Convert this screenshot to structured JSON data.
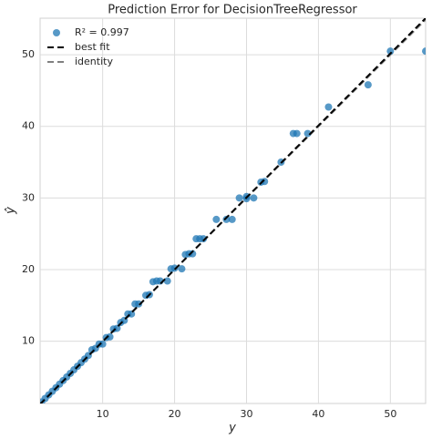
{
  "chart_data": {
    "type": "scatter",
    "title": "Prediction Error for DecisionTreeRegressor",
    "x_label": "y",
    "y_label": "ŷ",
    "xlim": [
      1.3,
      54.9
    ],
    "ylim": [
      1.3,
      55.1
    ],
    "xticks": [
      10,
      20,
      30,
      40,
      50
    ],
    "yticks": [
      10,
      20,
      30,
      40,
      50
    ],
    "grid": true,
    "legend": "upper left",
    "series": [
      {
        "name": "R² = 0.997",
        "mark": "point",
        "color": "#1f77b4",
        "x": [
          1.5,
          2,
          2.5,
          3,
          3.5,
          4,
          4.5,
          5,
          5.5,
          6,
          6.5,
          7,
          7.5,
          8,
          8.5,
          9,
          9.5,
          10,
          10.5,
          11,
          11.5,
          12,
          12.5,
          13,
          13.5,
          14,
          14.5,
          15,
          16,
          16.5,
          17,
          17.5,
          18,
          19,
          19.5,
          20,
          21,
          21.5,
          22,
          22.5,
          23,
          23.5,
          24,
          25.8,
          27.2,
          28,
          29,
          30,
          30,
          31,
          32,
          32.5,
          34.8,
          36.5,
          37,
          38.5,
          41.4,
          46.9,
          50,
          54.9
        ],
        "values": [
          1.5,
          2,
          2.5,
          3,
          3.5,
          4,
          4.5,
          5,
          5.5,
          6,
          6.5,
          7,
          7.5,
          8,
          8.8,
          9,
          9.6,
          9.6,
          10.5,
          10.6,
          11.7,
          11.8,
          12.6,
          12.9,
          13.8,
          13.8,
          15.2,
          15.2,
          16.4,
          16.5,
          18.3,
          18.4,
          18.4,
          18.4,
          20.1,
          20.2,
          20.1,
          22.1,
          22.2,
          22.2,
          24.3,
          24.3,
          24.3,
          27,
          27,
          27,
          30,
          29.9,
          30.2,
          30,
          32.2,
          32.3,
          35,
          39,
          39,
          39,
          42.7,
          45.8,
          50.5,
          50.5
        ]
      },
      {
        "name": "best fit",
        "mark": "dashed-line",
        "color": "#000000",
        "x": [
          1.3,
          54.9
        ],
        "values": [
          1.2,
          55.1
        ]
      },
      {
        "name": "identity",
        "mark": "dashed-line",
        "color": "#808080",
        "x": [
          1.3,
          55.1
        ],
        "values": [
          1.3,
          55.1
        ]
      }
    ]
  }
}
